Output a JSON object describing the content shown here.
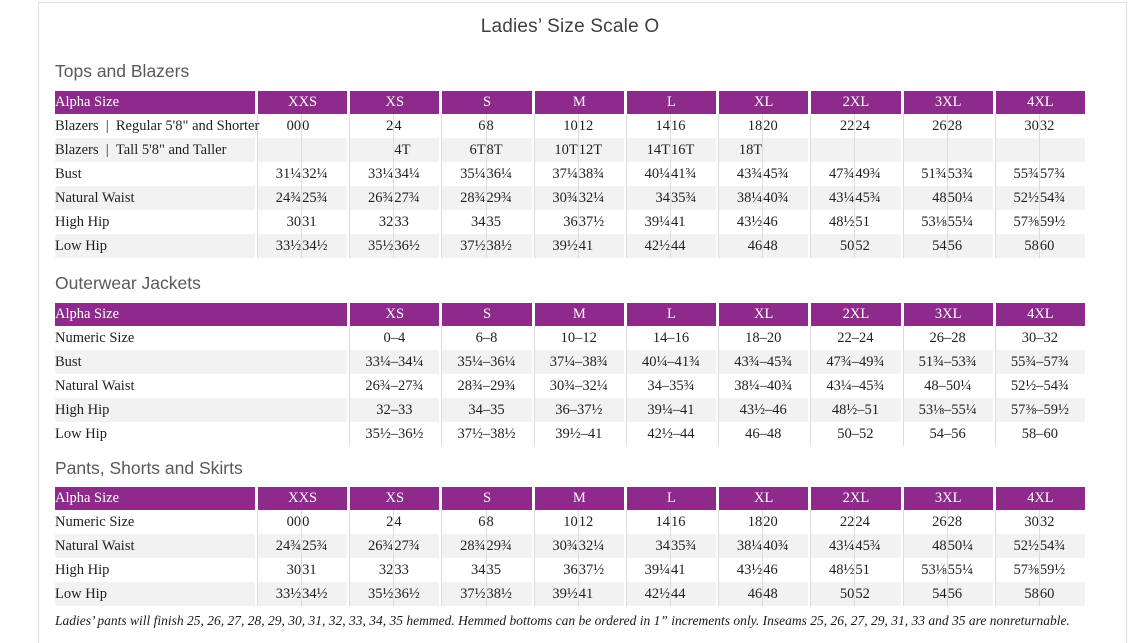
{
  "page": {
    "title": "Ladies’ Size Scale O"
  },
  "tables": [
    {
      "heading": "Tops and Blazers",
      "split_columns": true,
      "header": {
        "label": "Alpha Size",
        "groups": [
          "XXS",
          "XS",
          "S",
          "M",
          "L",
          "XL",
          "2XL",
          "3XL",
          "4XL"
        ]
      },
      "rows": [
        {
          "label": "Blazers | Regular 5'8\" and Shorter",
          "values": [
            "00",
            "0",
            "2",
            "4",
            "6",
            "8",
            "10",
            "12",
            "14",
            "16",
            "18",
            "20",
            "22",
            "24",
            "26",
            "28",
            "30",
            "32"
          ]
        },
        {
          "label": "Blazers | Tall 5'8\" and Taller",
          "values": [
            "",
            "",
            "",
            "4T",
            "6T",
            "8T",
            "10T",
            "12T",
            "14T",
            "16T",
            "18T",
            "",
            "",
            "",
            "",
            "",
            "",
            ""
          ]
        },
        {
          "label": "Bust",
          "values": [
            "31¼",
            "32¼",
            "33¼",
            "34¼",
            "35¼",
            "36¼",
            "37¼",
            "38¾",
            "40¼",
            "41¾",
            "43¾",
            "45¾",
            "47¾",
            "49¾",
            "51¾",
            "53¾",
            "55¾",
            "57¾"
          ]
        },
        {
          "label": "Natural Waist",
          "values": [
            "24¾",
            "25¾",
            "26¾",
            "27¾",
            "28¾",
            "29¾",
            "30¾",
            "32¼",
            "34",
            "35¾",
            "38¼",
            "40¾",
            "43¼",
            "45¾",
            "48",
            "50¼",
            "52½",
            "54¾"
          ]
        },
        {
          "label": "High Hip",
          "values": [
            "30",
            "31",
            "32",
            "33",
            "34",
            "35",
            "36",
            "37½",
            "39¼",
            "41",
            "43½",
            "46",
            "48½",
            "51",
            "53⅛",
            "55¼",
            "57⅜",
            "59½"
          ]
        },
        {
          "label": "Low Hip",
          "values": [
            "33½",
            "34½",
            "35½",
            "36½",
            "37½",
            "38½",
            "39½",
            "41",
            "42½",
            "44",
            "46",
            "48",
            "50",
            "52",
            "54",
            "56",
            "58",
            "60"
          ]
        }
      ]
    },
    {
      "heading": "Outerwear Jackets",
      "split_columns": false,
      "header": {
        "label": "Alpha Size",
        "groups": [
          "XS",
          "S",
          "M",
          "L",
          "XL",
          "2XL",
          "3XL",
          "4XL"
        ]
      },
      "rows": [
        {
          "label": "Numeric Size",
          "values": [
            "0–4",
            "6–8",
            "10–12",
            "14–16",
            "18–20",
            "22–24",
            "26–28",
            "30–32"
          ]
        },
        {
          "label": "Bust",
          "values": [
            "33¼–34¼",
            "35¼–36¼",
            "37¼–38¾",
            "40¼–41¾",
            "43¾–45¾",
            "47¾–49¾",
            "51¾–53¾",
            "55¾–57¾"
          ]
        },
        {
          "label": "Natural Waist",
          "values": [
            "26¾–27¾",
            "28¾–29¾",
            "30¾–32¼",
            "34–35¾",
            "38¼–40¾",
            "43¼–45¾",
            "48–50¼",
            "52½–54¾"
          ]
        },
        {
          "label": "High Hip",
          "values": [
            "32–33",
            "34–35",
            "36–37½",
            "39¼–41",
            "43½–46",
            "48½–51",
            "53⅛–55¼",
            "57⅜–59½"
          ]
        },
        {
          "label": "Low Hip",
          "values": [
            "35½–36½",
            "37½–38½",
            "39½–41",
            "42½–44",
            "46–48",
            "50–52",
            "54–56",
            "58–60"
          ]
        }
      ]
    },
    {
      "heading": "Pants, Shorts and Skirts",
      "split_columns": true,
      "header": {
        "label": "Alpha Size",
        "groups": [
          "XXS",
          "XS",
          "S",
          "M",
          "L",
          "XL",
          "2XL",
          "3XL",
          "4XL"
        ]
      },
      "rows": [
        {
          "label": "Numeric Size",
          "values": [
            "00",
            "0",
            "2",
            "4",
            "6",
            "8",
            "10",
            "12",
            "14",
            "16",
            "18",
            "20",
            "22",
            "24",
            "26",
            "28",
            "30",
            "32"
          ]
        },
        {
          "label": "Natural Waist",
          "values": [
            "24¾",
            "25¾",
            "26¾",
            "27¾",
            "28¾",
            "29¾",
            "30¾",
            "32¼",
            "34",
            "35¾",
            "38¼",
            "40¾",
            "43¼",
            "45¾",
            "48",
            "50¼",
            "52½",
            "54¾"
          ]
        },
        {
          "label": "High Hip",
          "values": [
            "30",
            "31",
            "32",
            "33",
            "34",
            "35",
            "36",
            "37½",
            "39¼",
            "41",
            "43½",
            "46",
            "48½",
            "51",
            "53⅛",
            "55¼",
            "57⅜",
            "59½"
          ]
        },
        {
          "label": "Low Hip",
          "values": [
            "33½",
            "34½",
            "35½",
            "36½",
            "37½",
            "38½",
            "39½",
            "41",
            "42½",
            "44",
            "46",
            "48",
            "50",
            "52",
            "54",
            "56",
            "58",
            "60"
          ]
        }
      ]
    }
  ],
  "footnote": "Ladies’ pants will finish 25, 26, 27, 28, 29, 30, 31, 32, 33, 34, 35 hemmed. Hemmed bottoms can be ordered in 1” increments only. Inseams 25, 26, 27, 29, 31, 33 and 35 are nonreturnable.",
  "colors": {
    "header_purple": "#8f2a8d",
    "stripe_gray": "#f2f2f2",
    "divider_gray": "#dcdcdc"
  }
}
